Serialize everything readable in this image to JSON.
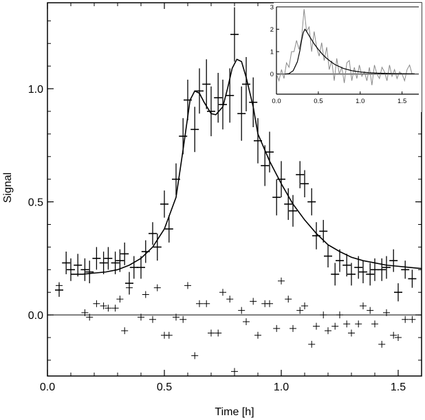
{
  "chart_data": [
    {
      "type": "scatter",
      "xlabel": "Time [h]",
      "ylabel": "Signal",
      "xlim": [
        0.0,
        1.6
      ],
      "ylim": [
        -0.27,
        1.38
      ],
      "xticks": [
        0.0,
        0.5,
        1.0,
        1.5
      ],
      "xtick_labels": [
        "0.0",
        "0.5",
        "1.0",
        "1.5"
      ],
      "yticks": [
        0.0,
        0.5,
        1.0
      ],
      "ytick_labels": [
        "0.0",
        "0.5",
        "1.0"
      ],
      "grid": false,
      "reference_line_y": 0.0,
      "series": [
        {
          "style": "errorbar",
          "x": [
            0.05,
            0.08,
            0.1,
            0.13,
            0.16,
            0.18,
            0.21,
            0.24,
            0.26,
            0.29,
            0.31,
            0.33,
            0.35,
            0.37,
            0.4,
            0.42,
            0.45,
            0.47,
            0.5,
            0.52,
            0.55,
            0.58,
            0.6,
            0.63,
            0.65,
            0.68,
            0.7,
            0.73,
            0.75,
            0.78,
            0.8,
            0.83,
            0.85,
            0.88,
            0.9,
            0.93,
            0.95,
            0.98,
            1.0,
            1.03,
            1.05,
            1.08,
            1.1,
            1.13,
            1.15,
            1.18,
            1.2,
            1.23,
            1.25,
            1.28,
            1.3,
            1.33,
            1.35,
            1.38,
            1.4,
            1.43,
            1.45,
            1.48,
            1.5,
            1.53,
            1.56
          ],
          "y": [
            0.11,
            0.23,
            0.2,
            0.22,
            0.2,
            0.19,
            0.25,
            0.23,
            0.25,
            0.23,
            0.24,
            0.27,
            0.14,
            0.21,
            0.21,
            0.28,
            0.36,
            0.3,
            0.49,
            0.38,
            0.6,
            0.79,
            0.95,
            0.82,
            0.99,
            1.02,
            0.9,
            0.96,
            0.93,
            0.97,
            1.24,
            0.89,
            1.02,
            0.94,
            0.77,
            0.66,
            0.72,
            0.52,
            0.6,
            0.49,
            0.46,
            0.62,
            0.58,
            0.5,
            0.35,
            0.37,
            0.26,
            0.18,
            0.24,
            0.22,
            0.18,
            0.21,
            0.19,
            0.18,
            0.2,
            0.2,
            0.21,
            0.24,
            0.1,
            0.2,
            0.16
          ],
          "yerr": [
            0.03,
            0.05,
            0.05,
            0.05,
            0.05,
            0.05,
            0.05,
            0.05,
            0.05,
            0.05,
            0.05,
            0.05,
            0.05,
            0.05,
            0.05,
            0.05,
            0.05,
            0.06,
            0.06,
            0.06,
            0.07,
            0.08,
            0.09,
            0.1,
            0.1,
            0.11,
            0.11,
            0.11,
            0.11,
            0.12,
            0.12,
            0.12,
            0.12,
            0.11,
            0.1,
            0.09,
            0.09,
            0.08,
            0.08,
            0.07,
            0.07,
            0.06,
            0.06,
            0.06,
            0.06,
            0.05,
            0.05,
            0.05,
            0.05,
            0.05,
            0.05,
            0.05,
            0.05,
            0.05,
            0.05,
            0.05,
            0.05,
            0.05,
            0.04,
            0.04,
            0.04
          ]
        },
        {
          "style": "line",
          "x": [
            0.1,
            0.15,
            0.2,
            0.25,
            0.3,
            0.35,
            0.4,
            0.45,
            0.5,
            0.55,
            0.58,
            0.61,
            0.63,
            0.65,
            0.67,
            0.7,
            0.72,
            0.75,
            0.77,
            0.79,
            0.81,
            0.83,
            0.85,
            0.88,
            0.9,
            0.95,
            1.0,
            1.05,
            1.1,
            1.15,
            1.2,
            1.25,
            1.3,
            1.35,
            1.4,
            1.45,
            1.5,
            1.55,
            1.6
          ],
          "y": [
            0.18,
            0.18,
            0.185,
            0.19,
            0.2,
            0.22,
            0.25,
            0.3,
            0.38,
            0.52,
            0.73,
            0.95,
            0.99,
            0.98,
            0.94,
            0.89,
            0.885,
            0.92,
            1.0,
            1.09,
            1.13,
            1.12,
            1.05,
            0.92,
            0.8,
            0.68,
            0.58,
            0.49,
            0.42,
            0.36,
            0.31,
            0.28,
            0.255,
            0.24,
            0.23,
            0.22,
            0.215,
            0.21,
            0.205
          ]
        },
        {
          "style": "plus",
          "x": [
            0.05,
            0.16,
            0.18,
            0.21,
            0.24,
            0.26,
            0.29,
            0.31,
            0.33,
            0.35,
            0.4,
            0.42,
            0.45,
            0.47,
            0.5,
            0.52,
            0.55,
            0.58,
            0.6,
            0.63,
            0.65,
            0.68,
            0.7,
            0.73,
            0.75,
            0.78,
            0.8,
            0.83,
            0.85,
            0.88,
            0.9,
            0.93,
            0.95,
            0.98,
            1.0,
            1.03,
            1.05,
            1.08,
            1.1,
            1.13,
            1.15,
            1.18,
            1.2,
            1.23,
            1.25,
            1.28,
            1.3,
            1.33,
            1.35,
            1.38,
            1.4,
            1.43,
            1.45,
            1.48,
            1.5,
            1.53,
            1.56
          ],
          "y": [
            0.13,
            0.01,
            -0.01,
            0.05,
            0.04,
            0.03,
            0.03,
            0.07,
            -0.07,
            0.12,
            -0.01,
            0.09,
            -0.02,
            0.12,
            -0.09,
            -0.09,
            -0.01,
            -0.02,
            0.13,
            -0.18,
            0.05,
            0.05,
            -0.08,
            -0.08,
            0.1,
            0.07,
            -0.25,
            0.02,
            -0.03,
            0.06,
            -0.09,
            0.05,
            0.05,
            -0.06,
            0.15,
            0.07,
            -0.06,
            0.02,
            0.04,
            -0.13,
            -0.05,
            0.0,
            -0.07,
            -0.05,
            0.0,
            -0.04,
            -0.08,
            -0.04,
            0.04,
            0.02,
            -0.04,
            -0.13,
            0.01,
            -0.09,
            -0.1,
            -0.02,
            -0.02
          ]
        }
      ]
    },
    {
      "type": "line",
      "xlim": [
        0.0,
        1.7
      ],
      "ylim": [
        -0.9,
        3.0
      ],
      "xticks": [
        0.0,
        0.5,
        1.0,
        1.5
      ],
      "xtick_labels": [
        "0.0",
        "0.5",
        "1.0",
        "1.5"
      ],
      "yticks": [
        0,
        1,
        2,
        3
      ],
      "ytick_labels": [
        "0",
        "1",
        "2",
        "3"
      ],
      "reference_line_y": 0.0,
      "series": [
        {
          "style": "noisy",
          "color": "#888888",
          "x": [
            0.0,
            0.03,
            0.06,
            0.09,
            0.12,
            0.15,
            0.18,
            0.21,
            0.24,
            0.27,
            0.3,
            0.33,
            0.36,
            0.39,
            0.42,
            0.45,
            0.48,
            0.51,
            0.54,
            0.57,
            0.6,
            0.63,
            0.66,
            0.69,
            0.72,
            0.75,
            0.78,
            0.81,
            0.84,
            0.87,
            0.9,
            0.93,
            0.96,
            0.99,
            1.02,
            1.05,
            1.08,
            1.11,
            1.14,
            1.17,
            1.2,
            1.23,
            1.26,
            1.29,
            1.32,
            1.35,
            1.38,
            1.41,
            1.44,
            1.47,
            1.5,
            1.53,
            1.56,
            1.59,
            1.62,
            1.65
          ],
          "y": [
            0.0,
            -0.3,
            0.2,
            -0.2,
            0.5,
            0.3,
            1.0,
            1.0,
            1.5,
            1.1,
            1.6,
            2.9,
            1.9,
            2.1,
            1.0,
            1.9,
            1.2,
            0.8,
            1.4,
            0.6,
            1.2,
            0.2,
            0.6,
            -0.3,
            0.7,
            0.0,
            0.3,
            -0.4,
            0.5,
            0.6,
            -0.3,
            0.3,
            -0.2,
            0.4,
            -0.1,
            0.1,
            -0.3,
            0.3,
            -0.5,
            0.4,
            0.0,
            -0.2,
            0.3,
            0.1,
            -0.3,
            0.4,
            -0.1,
            0.2,
            -0.2,
            0.1,
            0.0,
            -0.3,
            0.2,
            0.4,
            0.0,
            0.0
          ]
        },
        {
          "style": "smooth",
          "color": "#000000",
          "x": [
            0.1,
            0.15,
            0.2,
            0.25,
            0.28,
            0.3,
            0.32,
            0.34,
            0.36,
            0.4,
            0.45,
            0.5,
            0.55,
            0.6,
            0.65,
            0.7,
            0.8,
            0.9,
            1.0,
            1.1,
            1.2,
            1.3,
            1.4,
            1.5,
            1.6,
            1.65
          ],
          "y": [
            0.0,
            0.02,
            0.15,
            0.55,
            1.05,
            1.5,
            1.85,
            2.0,
            1.9,
            1.65,
            1.35,
            1.1,
            0.88,
            0.7,
            0.55,
            0.42,
            0.25,
            0.15,
            0.09,
            0.06,
            0.04,
            0.03,
            0.02,
            0.015,
            0.01,
            0.01
          ]
        }
      ]
    }
  ]
}
